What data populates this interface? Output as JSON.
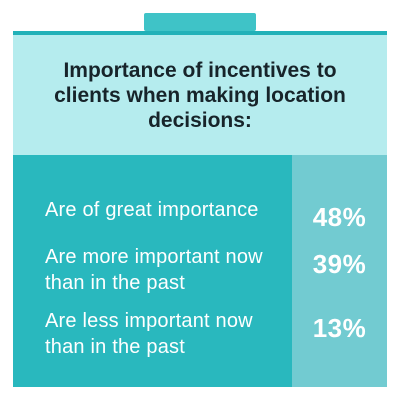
{
  "chart_data": {
    "type": "table",
    "title": "Importance of incentives to clients when making location decisions:",
    "categories": [
      "Are of great importance",
      "Are more important now than in the past",
      "Are less important now than in the past"
    ],
    "values": [
      48,
      39,
      13
    ],
    "rows": [
      {
        "label": "Are of great importance",
        "value": "48%"
      },
      {
        "label": "Are more important now than in the past",
        "value": "39%"
      },
      {
        "label": "Are less important now than in the past",
        "value": "13%"
      }
    ]
  },
  "colors": {
    "teal": "#29b8be",
    "header_bg": "#b5ecee",
    "value_col": "#72cbd1",
    "text_dark": "#17242a",
    "text_light": "#ffffff"
  }
}
